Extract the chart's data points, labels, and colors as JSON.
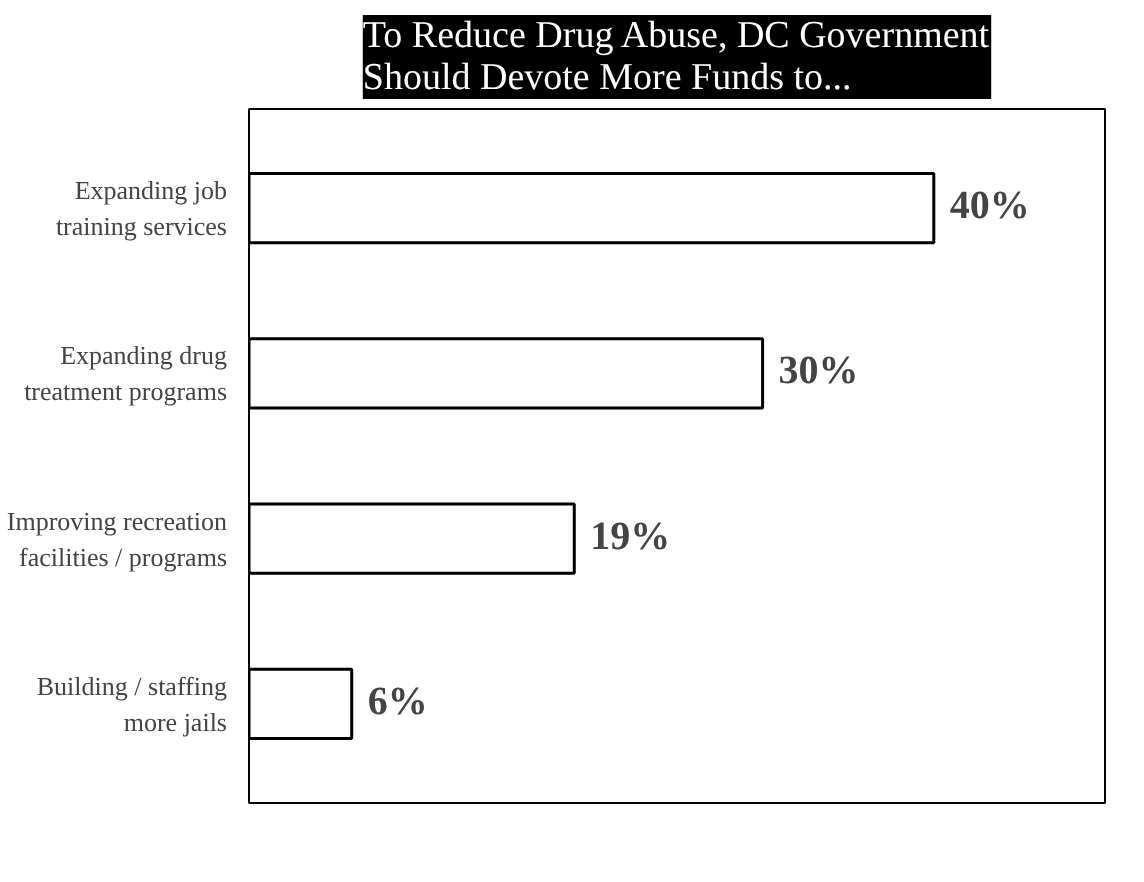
{
  "chart_data": {
    "type": "bar",
    "orientation": "horizontal",
    "title": "To Reduce Drug Abuse, DC Government\nShould Devote More Funds to...",
    "categories": [
      "Expanding job\ntraining services",
      "Expanding drug\ntreatment programs",
      "Improving recreation\nfacilities / programs",
      "Building / staffing\nmore jails"
    ],
    "values": [
      40,
      30,
      19,
      6
    ],
    "value_labels": [
      "40%",
      "30%",
      "19%",
      "6%"
    ],
    "color": "#ffffff",
    "grid": false
  }
}
